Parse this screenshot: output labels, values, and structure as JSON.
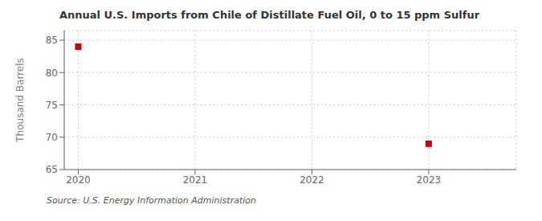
{
  "chart_data": {
    "type": "scatter",
    "title": "Annual U.S. Imports from Chile of Distillate Fuel Oil, 0 to 15 ppm Sulfur",
    "ylabel": "Thousand Barrels",
    "source": "Source: U.S. Energy Information Administration",
    "x": [
      2020,
      2023
    ],
    "values": [
      84,
      69
    ],
    "color": "#cc0000",
    "marker": "square",
    "xlim": [
      2019.88,
      2023.75
    ],
    "ylim": [
      65,
      86.5
    ],
    "xticks": [
      2020,
      2021,
      2022,
      2023
    ],
    "yticks": [
      65,
      70,
      75,
      80,
      85
    ],
    "grid": true
  }
}
